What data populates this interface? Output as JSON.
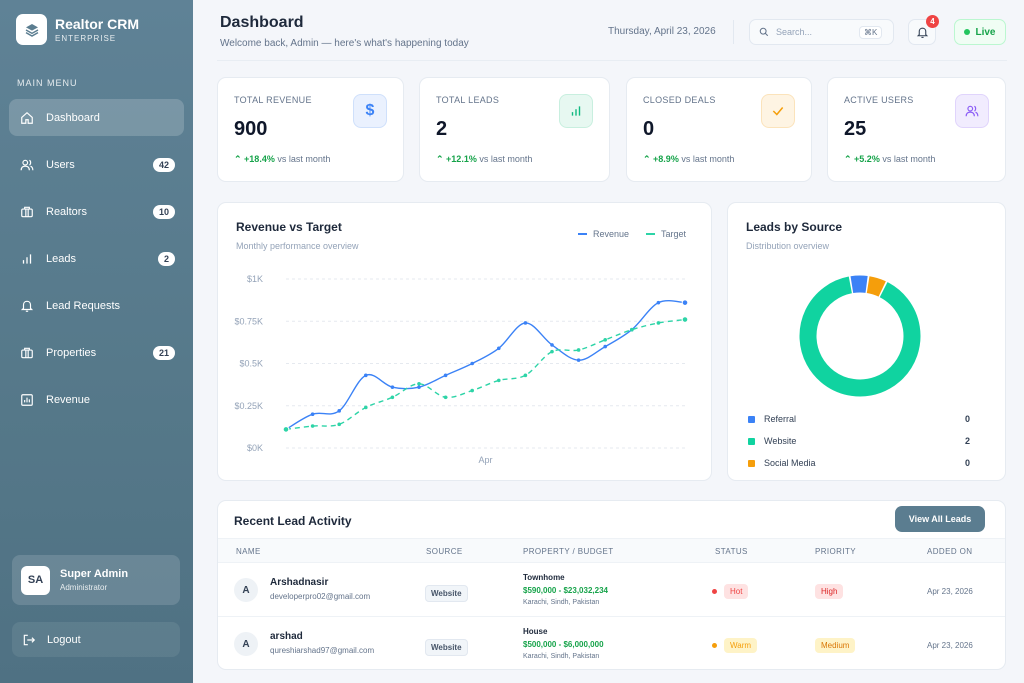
{
  "brand": {
    "name": "Realtor CRM",
    "subtitle": "ENTERPRISE"
  },
  "sidebar": {
    "section_label": "MAIN MENU",
    "items": [
      {
        "label": "Dashboard",
        "icon": "home-icon",
        "badge": ""
      },
      {
        "label": "Users",
        "icon": "users-icon",
        "badge": "42"
      },
      {
        "label": "Realtors",
        "icon": "briefcase-icon",
        "badge": "10"
      },
      {
        "label": "Leads",
        "icon": "bar-chart-icon",
        "badge": "2"
      },
      {
        "label": "Lead Requests",
        "icon": "bell-icon",
        "badge": ""
      },
      {
        "label": "Properties",
        "icon": "briefcase-icon",
        "badge": "21"
      },
      {
        "label": "Revenue",
        "icon": "chart-box-icon",
        "badge": ""
      }
    ],
    "user": {
      "initials": "SA",
      "name": "Super Admin",
      "role": "Administrator"
    },
    "logout_label": "Logout"
  },
  "header": {
    "title": "Dashboard",
    "subtitle": "Welcome back, Admin — here's what's happening today",
    "date": "Thursday, April 23, 2026",
    "search_placeholder": "Search...",
    "search_shortcut": "⌘K",
    "notification_count": "4",
    "live_label": "Live"
  },
  "stats": [
    {
      "label": "TOTAL REVENUE",
      "value": "900",
      "change": "+18.4%",
      "suffix": "vs last month",
      "icon": "dollar-icon",
      "color": "#3b82f6",
      "bg": "#eaf1fe"
    },
    {
      "label": "TOTAL LEADS",
      "value": "2",
      "change": "+12.1%",
      "suffix": "vs last month",
      "icon": "bar-chart-icon",
      "color": "#10b981",
      "bg": "#e7f8f1"
    },
    {
      "label": "CLOSED DEALS",
      "value": "0",
      "change": "+8.9%",
      "suffix": "vs last month",
      "icon": "check-icon",
      "color": "#f59e0b",
      "bg": "#fef4e3"
    },
    {
      "label": "ACTIVE USERS",
      "value": "25",
      "change": "+5.2%",
      "suffix": "vs last month",
      "icon": "users-icon",
      "color": "#8b5cf6",
      "bg": "#f1ecfe"
    }
  ],
  "chart_data": [
    {
      "type": "line",
      "title": "Revenue vs Target",
      "subtitle": "Monthly performance overview",
      "xlabel": "Apr",
      "y_ticks": [
        "$0K",
        "$0.25K",
        "$0.5K",
        "$0.75K",
        "$1K"
      ],
      "ylim": [
        0,
        1000
      ],
      "x": [
        1,
        2,
        3,
        4,
        5,
        6,
        7,
        8,
        9,
        10,
        11,
        12,
        13,
        14,
        15,
        16
      ],
      "series": [
        {
          "name": "Revenue",
          "color": "#3b82f6",
          "values": [
            110,
            200,
            220,
            430,
            360,
            360,
            430,
            500,
            590,
            740,
            610,
            520,
            600,
            700,
            860,
            860
          ]
        },
        {
          "name": "Target",
          "color": "#2dd4a7",
          "values": [
            110,
            130,
            140,
            240,
            300,
            380,
            300,
            340,
            400,
            430,
            570,
            580,
            640,
            700,
            740,
            760
          ]
        }
      ],
      "grid": true,
      "legend": "top-right"
    },
    {
      "type": "pie",
      "title": "Leads by Source",
      "subtitle": "Distribution overview",
      "categories": [
        "Referral",
        "Website",
        "Social Media"
      ],
      "values": [
        0,
        2,
        0
      ],
      "colors": [
        "#3b82f6",
        "#10d3a0",
        "#f59e0b"
      ]
    }
  ],
  "table": {
    "title": "Recent Lead Activity",
    "view_all_label": "View All Leads",
    "columns": [
      "NAME",
      "SOURCE",
      "PROPERTY / BUDGET",
      "STATUS",
      "PRIORITY",
      "ADDED ON"
    ],
    "rows": [
      {
        "initial": "A",
        "name": "Arshadnasir",
        "email": "developerpro02@gmail.com",
        "source": "Website",
        "property": "Townhome",
        "budget": "$590,000 - $23,032,234",
        "location": "Karachi, Sindh, Pakistan",
        "status": "Hot",
        "status_color": "#ef4444",
        "status_bg": "#fee2e2",
        "priority": "High",
        "priority_color": "#dc2626",
        "priority_bg": "#fee2e2",
        "added": "Apr 23, 2026"
      },
      {
        "initial": "A",
        "name": "arshad",
        "email": "qureshiarshad97@gmail.com",
        "source": "Website",
        "property": "House",
        "budget": "$500,000 - $6,000,000",
        "location": "Karachi, Sindh, Pakistan",
        "status": "Warm",
        "status_color": "#f59e0b",
        "status_bg": "#fef3c7",
        "priority": "Medium",
        "priority_color": "#d97706",
        "priority_bg": "#fef3c7",
        "added": "Apr 23, 2026"
      }
    ]
  }
}
